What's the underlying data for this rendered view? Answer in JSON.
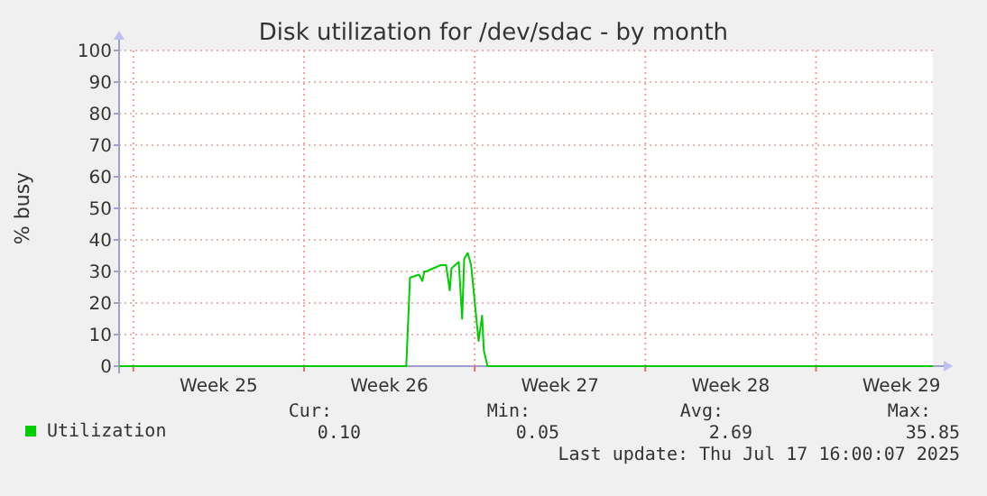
{
  "chart_data": {
    "type": "line",
    "title": "Disk utilization for /dev/sdac - by month",
    "ylabel": "% busy",
    "xlim": [
      "2025-06-15T10:00",
      "2025-07-18T19:00"
    ],
    "ylim": [
      0,
      100
    ],
    "xticks": [
      {
        "value": "2025-06-16",
        "label": null
      },
      {
        "value": "2025-06-19T12:00",
        "label": "Week 25"
      },
      {
        "value": "2025-06-23",
        "label": null
      },
      {
        "value": "2025-06-26T12:00",
        "label": "Week 26"
      },
      {
        "value": "2025-06-30",
        "label": null
      },
      {
        "value": "2025-07-03T12:00",
        "label": "Week 27"
      },
      {
        "value": "2025-07-07",
        "label": null
      },
      {
        "value": "2025-07-10T12:00",
        "label": "Week 28"
      },
      {
        "value": "2025-07-14",
        "label": null
      },
      {
        "value": "2025-07-17T12:00",
        "label": "Week 29"
      }
    ],
    "yticks": [
      0,
      10,
      20,
      30,
      40,
      50,
      60,
      70,
      80,
      90,
      100
    ],
    "grid": true,
    "legend": "bottom left",
    "marker": "none",
    "line_style": "solid",
    "series": [
      {
        "name": "Utilization",
        "color": "#00cc00",
        "x": [
          "2025-06-15T10:00",
          "2025-06-27T04:40",
          "2025-06-27T08:20",
          "2025-06-27T17:10",
          "2025-06-27T20:30",
          "2025-06-27T22:30",
          "2025-06-28T00:10",
          "2025-06-28T07:20",
          "2025-06-28T14:30",
          "2025-06-28T19:50",
          "2025-06-28T23:30",
          "2025-06-29T01:10",
          "2025-06-29T08:20",
          "2025-06-29T11:40",
          "2025-06-29T13:40",
          "2025-06-29T17:10",
          "2025-06-29T20:30",
          "2025-06-30T00:10",
          "2025-06-30T03:50",
          "2025-06-30T07:20",
          "2025-06-30T09:00",
          "2025-06-30T12:40",
          "2025-07-18T19:00"
        ],
        "values": [
          0,
          0,
          28,
          29,
          27,
          30,
          30,
          31,
          32,
          32,
          24,
          31,
          33,
          15,
          34,
          35.85,
          32,
          20,
          8,
          16,
          5,
          0,
          0
        ]
      }
    ],
    "annotations": [
      "Cur:",
      "0.10",
      "Min:",
      "0.05",
      "Avg:",
      "2.69",
      "Max:",
      "35.85",
      "Last update: Thu Jul 17 16:00:07 2025"
    ]
  }
}
